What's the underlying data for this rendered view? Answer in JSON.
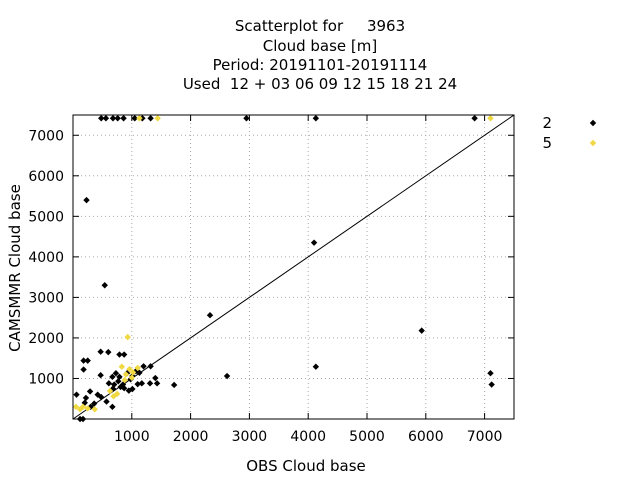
{
  "chart_data": {
    "type": "scatter",
    "title_lines": [
      "Scatterplot for     3963",
      "Cloud base [m]",
      "Period: 20191101-20191114",
      "Used  12 + 03 06 09 12 15 18 21 24"
    ],
    "xlabel": "OBS Cloud base",
    "ylabel": "CAMSMMR Cloud base",
    "xlim": [
      0,
      7500
    ],
    "ylim": [
      0,
      7500
    ],
    "xticks": [
      1000,
      2000,
      3000,
      4000,
      5000,
      6000,
      7000
    ],
    "yticks": [
      1000,
      2000,
      3000,
      4000,
      5000,
      6000,
      7000
    ],
    "grid": true,
    "legend_position": "outside-right",
    "diagonal": true,
    "series": [
      {
        "name": "2",
        "color": "#000000",
        "points": [
          [
            480,
            7420
          ],
          [
            560,
            7420
          ],
          [
            680,
            7420
          ],
          [
            760,
            7420
          ],
          [
            860,
            7420
          ],
          [
            1050,
            7420
          ],
          [
            1180,
            7420
          ],
          [
            1320,
            7420
          ],
          [
            2950,
            7420
          ],
          [
            4130,
            7420
          ],
          [
            6830,
            7420
          ],
          [
            230,
            5400
          ],
          [
            540,
            3300
          ],
          [
            4100,
            4350
          ],
          [
            2330,
            2560
          ],
          [
            5930,
            2180
          ],
          [
            180,
            1440
          ],
          [
            250,
            1440
          ],
          [
            470,
            1660
          ],
          [
            600,
            1650
          ],
          [
            790,
            1590
          ],
          [
            870,
            1590
          ],
          [
            180,
            1220
          ],
          [
            470,
            1080
          ],
          [
            670,
            1040
          ],
          [
            730,
            1130
          ],
          [
            790,
            1040
          ],
          [
            920,
            1130
          ],
          [
            1010,
            1060
          ],
          [
            1070,
            1180
          ],
          [
            1130,
            1140
          ],
          [
            1200,
            1300
          ],
          [
            1320,
            1300
          ],
          [
            1400,
            1010
          ],
          [
            1430,
            880
          ],
          [
            1720,
            840
          ],
          [
            2620,
            1060
          ],
          [
            4130,
            1290
          ],
          [
            7100,
            1130
          ],
          [
            7120,
            850
          ],
          [
            610,
            880
          ],
          [
            700,
            850
          ],
          [
            770,
            930
          ],
          [
            810,
            790
          ],
          [
            870,
            760
          ],
          [
            950,
            700
          ],
          [
            1010,
            740
          ],
          [
            1100,
            860
          ],
          [
            1170,
            880
          ],
          [
            1310,
            880
          ],
          [
            680,
            750
          ],
          [
            850,
            850
          ],
          [
            980,
            980
          ],
          [
            60,
            600
          ],
          [
            220,
            520
          ],
          [
            290,
            680
          ],
          [
            360,
            380
          ],
          [
            420,
            600
          ],
          [
            480,
            540
          ],
          [
            570,
            430
          ],
          [
            670,
            300
          ],
          [
            200,
            400
          ],
          [
            300,
            300
          ],
          [
            120,
            0
          ],
          [
            170,
            0
          ]
        ]
      },
      {
        "name": "5",
        "color": "#f0d840",
        "points": [
          [
            7100,
            7420
          ],
          [
            1130,
            7420
          ],
          [
            1440,
            7420
          ],
          [
            930,
            2020
          ],
          [
            830,
            1290
          ],
          [
            960,
            1230
          ],
          [
            1020,
            1150
          ],
          [
            1100,
            1260
          ],
          [
            900,
            1100
          ],
          [
            1000,
            1020
          ],
          [
            880,
            960
          ],
          [
            630,
            690
          ],
          [
            750,
            620
          ],
          [
            690,
            560
          ],
          [
            50,
            300
          ],
          [
            120,
            240
          ],
          [
            250,
            260
          ],
          [
            370,
            240
          ],
          [
            170,
            300
          ]
        ]
      }
    ]
  }
}
